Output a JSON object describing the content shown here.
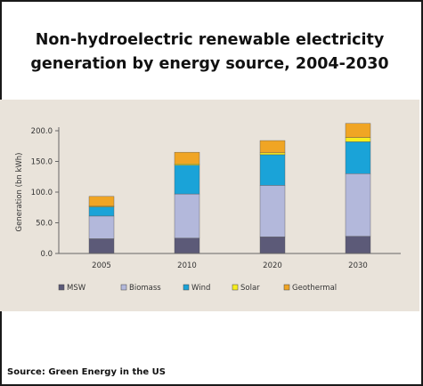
{
  "title_line1": "Non-hydroelectric renewable electricity",
  "title_line2": "generation by energy source, 2004-2030",
  "source": "Source: Green Energy in the US",
  "colors": {
    "MSW": "#5c5a78",
    "Biomass": "#b3b8db",
    "Wind": "#1aa3d8",
    "Solar": "#f7ee1e",
    "Geothermal": "#f0a524",
    "panel": "#e9e3da"
  },
  "chart_data": {
    "type": "bar",
    "stacked": true,
    "categories": [
      "2005",
      "2010",
      "2020",
      "2030"
    ],
    "series": [
      {
        "name": "MSW",
        "values": [
          24,
          25,
          27,
          28
        ]
      },
      {
        "name": "Biomass",
        "values": [
          37,
          72,
          84,
          102
        ]
      },
      {
        "name": "Wind",
        "values": [
          15,
          47,
          50,
          52
        ]
      },
      {
        "name": "Solar",
        "values": [
          1,
          2,
          3,
          7
        ]
      },
      {
        "name": "Geothermal",
        "values": [
          16,
          19,
          20,
          23
        ]
      }
    ],
    "xlabel": "",
    "ylabel": "Generation (bn kWh)",
    "ylim": [
      0,
      200
    ],
    "yticks": [
      0,
      50,
      100,
      150,
      200
    ],
    "ytick_labels": [
      "0.0",
      "50.0",
      "100.0",
      "150.0",
      "200.0"
    ],
    "grid": false,
    "legend_position": "bottom"
  }
}
